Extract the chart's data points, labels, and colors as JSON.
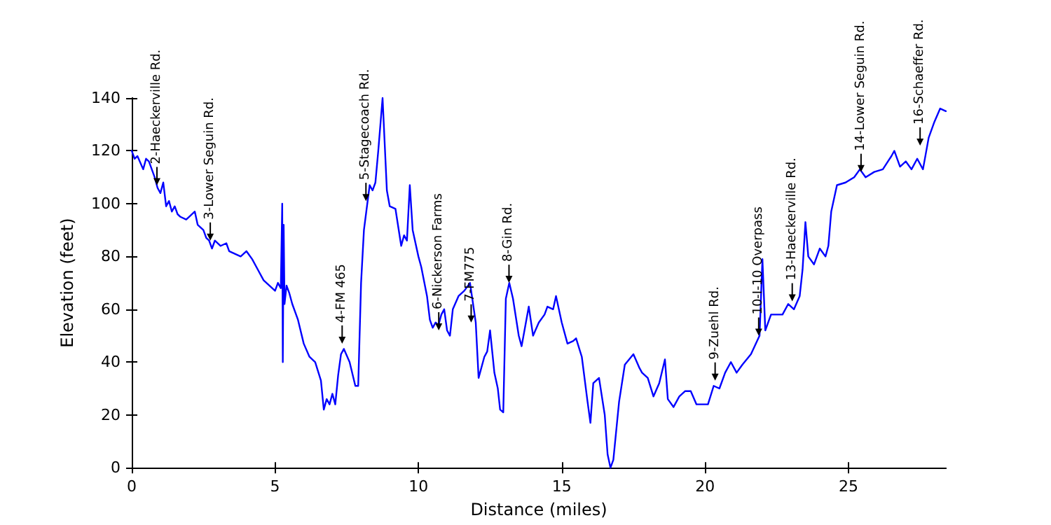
{
  "chart_data": {
    "type": "line",
    "xlabel": "Distance (miles)",
    "ylabel": "Elevation (feet)",
    "xlim": [
      0,
      28.4
    ],
    "xticks": [
      0,
      5,
      10,
      15,
      20,
      25
    ],
    "ylim": [
      0,
      140
    ],
    "yticks": [
      0,
      20,
      40,
      60,
      80,
      100,
      120,
      140
    ],
    "grid": false,
    "marker": "none",
    "line_style": "solid",
    "series": [
      {
        "color": "#0000ff",
        "x": [
          0,
          0.1,
          0.2,
          0.4,
          0.5,
          0.6,
          0.8,
          0.9,
          1.0,
          1.1,
          1.2,
          1.3,
          1.4,
          1.5,
          1.6,
          1.7,
          1.9,
          2.0,
          2.2,
          2.3,
          2.5,
          2.6,
          2.7,
          2.8,
          2.9,
          3.1,
          3.3,
          3.4,
          3.6,
          3.8,
          4.0,
          4.2,
          4.4,
          4.6,
          4.8,
          5.0,
          5.1,
          5.2,
          5.25,
          5.27,
          5.3,
          5.33,
          5.4,
          5.5,
          5.6,
          5.8,
          6.0,
          6.2,
          6.4,
          6.6,
          6.7,
          6.8,
          6.9,
          7.0,
          7.1,
          7.2,
          7.3,
          7.4,
          7.6,
          7.8,
          7.9,
          8.0,
          8.1,
          8.3,
          8.4,
          8.5,
          8.6,
          8.75,
          8.9,
          9.0,
          9.2,
          9.4,
          9.5,
          9.6,
          9.7,
          9.8,
          10.0,
          10.1,
          10.3,
          10.4,
          10.5,
          10.6,
          10.7,
          10.8,
          10.9,
          11.0,
          11.1,
          11.2,
          11.4,
          11.6,
          11.8,
          12.0,
          12.1,
          12.3,
          12.4,
          12.5,
          12.65,
          12.77,
          12.85,
          12.96,
          13.05,
          13.17,
          13.3,
          13.5,
          13.6,
          13.85,
          14.0,
          14.2,
          14.4,
          14.5,
          14.7,
          14.8,
          15.0,
          15.2,
          15.4,
          15.5,
          15.7,
          15.9,
          16.0,
          16.1,
          16.3,
          16.5,
          16.6,
          16.7,
          16.8,
          17.0,
          17.2,
          17.5,
          17.7,
          17.8,
          18.0,
          18.2,
          18.4,
          18.6,
          18.7,
          18.9,
          19.1,
          19.3,
          19.5,
          19.7,
          19.9,
          20.1,
          20.3,
          20.5,
          20.7,
          20.9,
          21.1,
          21.3,
          21.6,
          21.9,
          22.0,
          22.1,
          22.3,
          22.7,
          22.9,
          23.1,
          23.3,
          23.4,
          23.5,
          23.6,
          23.8,
          24.0,
          24.2,
          24.3,
          24.4,
          24.6,
          24.9,
          25.2,
          25.4,
          25.6,
          25.9,
          26.2,
          26.5,
          26.6,
          26.8,
          27.0,
          27.2,
          27.4,
          27.6,
          27.8,
          28.0,
          28.2,
          28.4
        ],
        "values": [
          120,
          117,
          118,
          113,
          117,
          116,
          110,
          106,
          104,
          108,
          99,
          101,
          97,
          99,
          96,
          95,
          94,
          95,
          97,
          92,
          90,
          87,
          86,
          83,
          86,
          84,
          85,
          82,
          81,
          80,
          82,
          79,
          75,
          71,
          69,
          67,
          70,
          68,
          100,
          40,
          92,
          62,
          69,
          66,
          62,
          56,
          47,
          42,
          40,
          33,
          22,
          26,
          24,
          28,
          24,
          35,
          43,
          45,
          40,
          31,
          31,
          70,
          90,
          107,
          105,
          108,
          120,
          140,
          105,
          99,
          98,
          84,
          88,
          86,
          107,
          90,
          80,
          76,
          65,
          56,
          53,
          55,
          54,
          58,
          60,
          52,
          50,
          60,
          65,
          67,
          70,
          55,
          34,
          42,
          44,
          52,
          36,
          30,
          22,
          21,
          64,
          70,
          64,
          50,
          46,
          61,
          50,
          55,
          58,
          61,
          60,
          65,
          55,
          47,
          48,
          49,
          42,
          25,
          17,
          32,
          34,
          20,
          5,
          0,
          3,
          25,
          39,
          43,
          38,
          36,
          34,
          27,
          32,
          41,
          26,
          23,
          27,
          29,
          29,
          24,
          24,
          24,
          31,
          30,
          36,
          40,
          36,
          39,
          43,
          50,
          79,
          52,
          58,
          58,
          62,
          60,
          65,
          75,
          93,
          80,
          77,
          83,
          80,
          84,
          97,
          107,
          108,
          110,
          113,
          110,
          112,
          113,
          118,
          120,
          114,
          116,
          113,
          117,
          113,
          125,
          131,
          136,
          135
        ]
      }
    ],
    "annotations": [
      {
        "text": "2-Haeckerville Rd.",
        "x": 0.88,
        "y": 107
      },
      {
        "text": "3-Lower Seguin Rd.",
        "x": 2.74,
        "y": 86
      },
      {
        "text": "4-FM 465",
        "x": 7.34,
        "y": 47
      },
      {
        "text": "5-Stagecoach Rd.",
        "x": 8.17,
        "y": 101
      },
      {
        "text": "6-Nickerson Farms",
        "x": 10.71,
        "y": 52
      },
      {
        "text": "7-FM775",
        "x": 11.84,
        "y": 55
      },
      {
        "text": "8-Gin Rd.",
        "x": 13.16,
        "y": 70
      },
      {
        "text": "9-Zuehl Rd.",
        "x": 20.35,
        "y": 33
      },
      {
        "text": "10-I-10 Overpass",
        "x": 21.87,
        "y": 50
      },
      {
        "text": "13-Haeckerville Rd.",
        "x": 23.04,
        "y": 63
      },
      {
        "text": "14-Lower Seguin Rd.",
        "x": 25.44,
        "y": 112
      },
      {
        "text": "16-Schaeffer Rd.",
        "x": 27.5,
        "y": 122
      }
    ]
  }
}
